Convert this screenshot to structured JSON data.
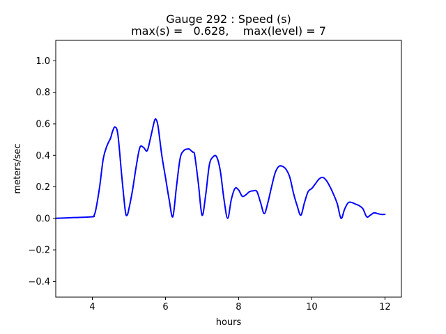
{
  "chart_data": {
    "type": "line",
    "title": "Gauge 292 : Speed (s)",
    "subtitle": "max(s) =   0.628,    max(level) = 7",
    "xlabel": "hours",
    "ylabel": "meters/sec",
    "xlim": [
      3.0,
      12.45
    ],
    "ylim": [
      -0.5,
      1.13
    ],
    "xticks": [
      4,
      6,
      8,
      10,
      12
    ],
    "xtick_labels": [
      "4",
      "6",
      "8",
      "10",
      "12"
    ],
    "yticks": [
      -0.4,
      -0.2,
      0.0,
      0.2,
      0.4,
      0.6,
      0.8,
      1.0
    ],
    "ytick_labels": [
      "−0.4",
      "−0.2",
      "0.0",
      "0.2",
      "0.4",
      "0.6",
      "0.8",
      "1.0"
    ],
    "grid": false,
    "series": [
      {
        "color": "#0000ff",
        "x": [
          3.0,
          3.5,
          4.0,
          4.05,
          4.1,
          4.2,
          4.3,
          4.4,
          4.5,
          4.55,
          4.62,
          4.7,
          4.8,
          4.9,
          4.95,
          5.0,
          5.1,
          5.2,
          5.3,
          5.4,
          5.5,
          5.6,
          5.7,
          5.75,
          5.8,
          5.9,
          6.0,
          6.1,
          6.2,
          6.3,
          6.4,
          6.5,
          6.6,
          6.65,
          6.7,
          6.75,
          6.8,
          6.9,
          7.0,
          7.1,
          7.2,
          7.3,
          7.4,
          7.5,
          7.6,
          7.7,
          7.8,
          7.9,
          8.0,
          8.1,
          8.2,
          8.3,
          8.4,
          8.5,
          8.6,
          8.7,
          8.8,
          8.9,
          9.0,
          9.1,
          9.2,
          9.3,
          9.4,
          9.5,
          9.6,
          9.7,
          9.8,
          9.9,
          10.0,
          10.1,
          10.2,
          10.3,
          10.4,
          10.5,
          10.6,
          10.7,
          10.8,
          10.9,
          11.0,
          11.1,
          11.2,
          11.3,
          11.4,
          11.5,
          11.6,
          11.7,
          11.8,
          11.9,
          12.0
        ],
        "y": [
          0.0,
          0.005,
          0.01,
          0.02,
          0.06,
          0.2,
          0.38,
          0.46,
          0.51,
          0.55,
          0.58,
          0.53,
          0.28,
          0.05,
          0.02,
          0.06,
          0.18,
          0.33,
          0.45,
          0.45,
          0.43,
          0.52,
          0.62,
          0.625,
          0.58,
          0.4,
          0.26,
          0.12,
          0.01,
          0.2,
          0.38,
          0.43,
          0.44,
          0.44,
          0.43,
          0.42,
          0.4,
          0.22,
          0.02,
          0.15,
          0.34,
          0.39,
          0.39,
          0.3,
          0.12,
          0.0,
          0.12,
          0.19,
          0.18,
          0.14,
          0.15,
          0.17,
          0.175,
          0.17,
          0.1,
          0.03,
          0.1,
          0.2,
          0.29,
          0.33,
          0.33,
          0.31,
          0.26,
          0.16,
          0.08,
          0.02,
          0.1,
          0.17,
          0.19,
          0.22,
          0.25,
          0.26,
          0.24,
          0.2,
          0.15,
          0.09,
          0.0,
          0.06,
          0.1,
          0.1,
          0.09,
          0.08,
          0.06,
          0.01,
          0.02,
          0.035,
          0.03,
          0.025,
          0.025
        ]
      }
    ]
  }
}
